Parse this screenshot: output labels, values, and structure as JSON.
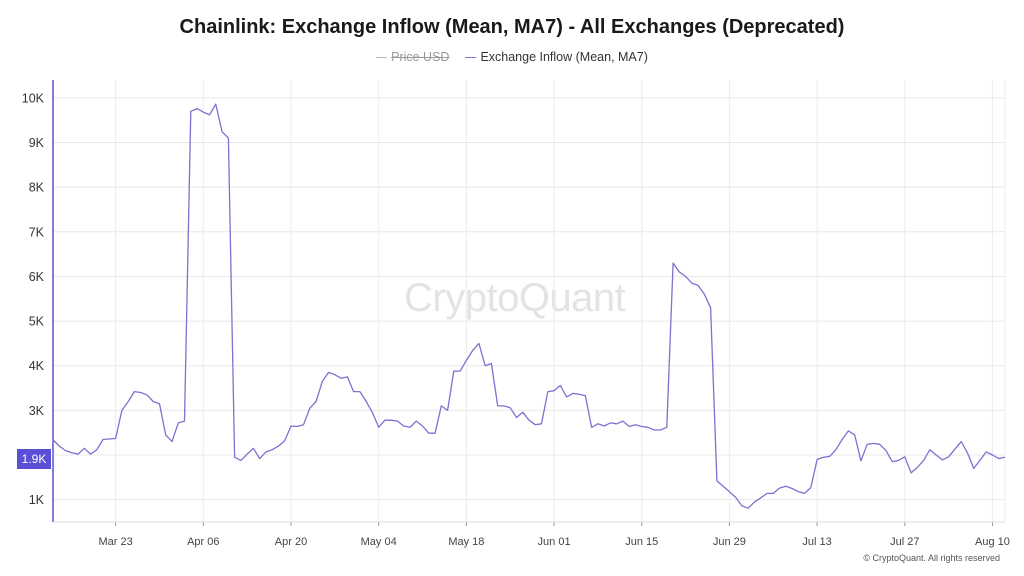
{
  "title": "Chainlink: Exchange Inflow (Mean, MA7) - All Exchanges (Deprecated)",
  "legend": [
    {
      "label": "Price USD",
      "color": "#bbbbbb",
      "disabled": true
    },
    {
      "label": "Exchange Inflow (Mean, MA7)",
      "color": "#7b72d1",
      "disabled": false
    }
  ],
  "watermark": "CryptoQuant",
  "copyright": "© CryptoQuant. All rights reserved",
  "crosshair_value": "1.9K",
  "chart_data": {
    "type": "line",
    "title": "Chainlink: Exchange Inflow (Mean, MA7) - All Exchanges (Deprecated)",
    "xlabel": "",
    "ylabel": "",
    "ylim": [
      500,
      10400
    ],
    "y_ticks": [
      1000,
      2000,
      3000,
      4000,
      5000,
      6000,
      7000,
      8000,
      9000,
      10000
    ],
    "y_tick_labels": [
      "1K",
      "",
      "3K",
      "4K",
      "5K",
      "6K",
      "7K",
      "8K",
      "9K",
      "10K"
    ],
    "x_tick_labels": [
      "Mar 23",
      "Apr 06",
      "Apr 20",
      "May 04",
      "May 18",
      "Jun 01",
      "Jun 15",
      "Jun 29",
      "Jul 13",
      "Jul 27",
      "Aug 10"
    ],
    "x_range": [
      "Mar 13",
      "Aug 12"
    ],
    "grid": true,
    "series": [
      {
        "name": "Exchange Inflow (Mean, MA7)",
        "color": "#7b72d1",
        "x_start": "Mar 13",
        "values": [
          2340,
          2200,
          2100,
          2050,
          2020,
          2150,
          2020,
          2120,
          2350,
          2360,
          2370,
          3000,
          3200,
          3420,
          3400,
          3350,
          3200,
          3150,
          2450,
          2300,
          2720,
          2760,
          9700,
          9760,
          9680,
          9620,
          9860,
          9240,
          9100,
          1950,
          1880,
          2020,
          2150,
          1920,
          2070,
          2120,
          2200,
          2320,
          2650,
          2640,
          2680,
          3050,
          3200,
          3650,
          3850,
          3800,
          3720,
          3750,
          3420,
          3420,
          3200,
          2950,
          2620,
          2780,
          2780,
          2760,
          2650,
          2620,
          2760,
          2650,
          2490,
          2490,
          3100,
          3000,
          3880,
          3880,
          4120,
          4340,
          4500,
          4000,
          4050,
          3100,
          3100,
          3060,
          2840,
          2960,
          2780,
          2680,
          2700,
          3420,
          3440,
          3560,
          3300,
          3380,
          3360,
          3330,
          2620,
          2700,
          2650,
          2720,
          2700,
          2760,
          2640,
          2680,
          2640,
          2620,
          2560,
          2560,
          2620,
          6300,
          6100,
          6000,
          5850,
          5800,
          5600,
          5300,
          1420,
          1300,
          1180,
          1050,
          860,
          810,
          950,
          1040,
          1140,
          1140,
          1260,
          1300,
          1250,
          1180,
          1140,
          1270,
          1900,
          1950,
          1970,
          2120,
          2350,
          2540,
          2450,
          1870,
          2240,
          2260,
          2240,
          2100,
          1850,
          1880,
          1960,
          1600,
          1720,
          1880,
          2120,
          2000,
          1890,
          1960,
          2130,
          2300,
          2050,
          1700,
          1880,
          2070,
          2000,
          1920,
          1950
        ]
      }
    ]
  }
}
